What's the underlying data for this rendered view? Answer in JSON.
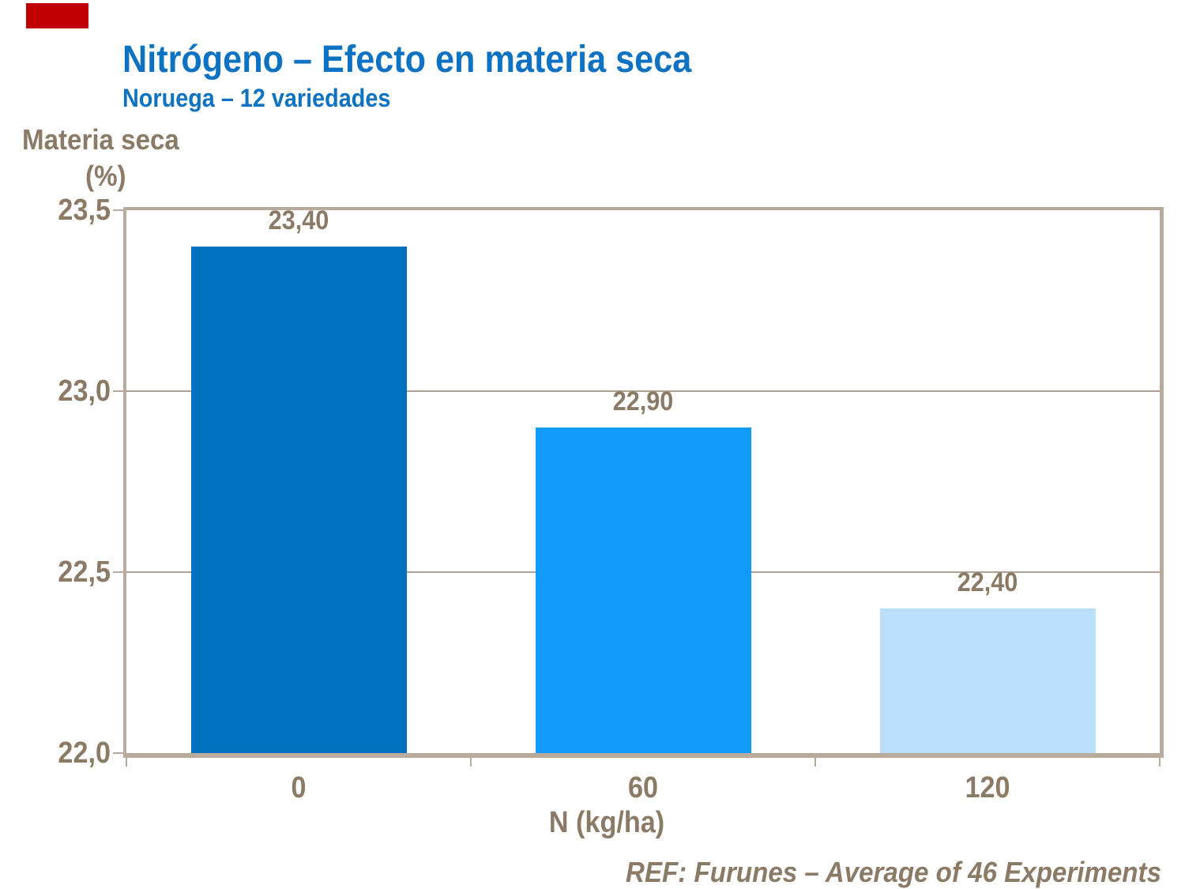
{
  "slide": {
    "ref_note": "REF: Furunes – Average of 46 Experiments",
    "marker_color": "#C00000",
    "title_color": "#0D72C1",
    "text_color": "#8A7A66",
    "axis_color": "#B9AB9C",
    "gridline_color": "#AFA193"
  },
  "chart_data": {
    "type": "bar",
    "title": "Nitrógeno – Efecto en materia seca",
    "subtitle": "Noruega – 12 variedades",
    "categories": [
      "0",
      "60",
      "120"
    ],
    "values": [
      23.4,
      22.9,
      22.4
    ],
    "value_labels": [
      "23,40",
      "22,90",
      "22,40"
    ],
    "bar_colors": [
      "#0070C0",
      "#129BFB",
      "#B9DFFC"
    ],
    "xlabel": "N (kg/ha)",
    "ylabel": "Materia seca",
    "ylabel_unit": "(%)",
    "ylim": [
      22.0,
      23.5
    ],
    "yticks": [
      23.5,
      23.0,
      22.5,
      22.0
    ],
    "ytick_labels": [
      "23,5",
      "23,0",
      "22,5",
      "22,0"
    ],
    "grid": true,
    "legend": false
  }
}
